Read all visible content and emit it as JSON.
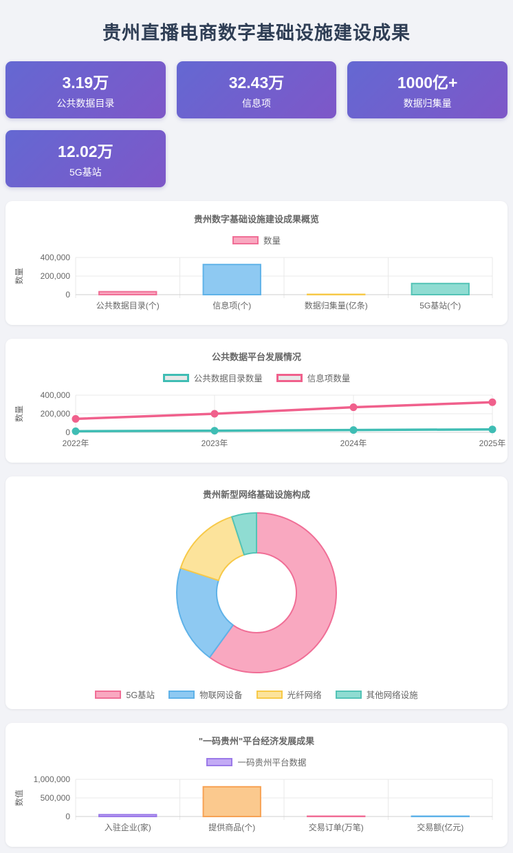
{
  "page": {
    "title": "贵州直播电商数字基础设施建设成果"
  },
  "theme": {
    "page_bg": "#f2f3f7",
    "card_bg": "#ffffff",
    "title_color": "#2f3e55",
    "chart_text": "#666666",
    "stat_gradient_start": "#6468d2",
    "stat_gradient_end": "#7e57c8"
  },
  "stat_cards": [
    {
      "value": "3.19万",
      "label": "公共数据目录"
    },
    {
      "value": "32.43万",
      "label": "信息项"
    },
    {
      "value": "1000亿+",
      "label": "数据归集量"
    },
    {
      "value": "12.02万",
      "label": "5G基站"
    }
  ],
  "chart_data": [
    {
      "type": "bar",
      "title": "贵州数字基础设施建设成果概览",
      "legend": [
        "数量"
      ],
      "legend_swatch": {
        "fill": "#f9a8c0",
        "border": "#f06e96"
      },
      "categories": [
        "公共数据目录(个)",
        "信息项(个)",
        "数据归集量(亿条)",
        "5G基站(个)"
      ],
      "values": [
        31900,
        324300,
        1000,
        120200
      ],
      "bar_colors": [
        {
          "fill": "#f9a8c0",
          "border": "#f06e96"
        },
        {
          "fill": "#8ec9f2",
          "border": "#5fb2e8"
        },
        {
          "fill": "#fce39b",
          "border": "#f7c948"
        },
        {
          "fill": "#8fdcd2",
          "border": "#53c3b6"
        }
      ],
      "xlabel": "",
      "ylabel": "数量",
      "yticks": [
        0,
        200000,
        400000
      ],
      "ylim": [
        0,
        400000
      ],
      "grid": true,
      "legend_position": "top"
    },
    {
      "type": "line",
      "title": "公共数据平台发展情况",
      "x": [
        "2022年",
        "2023年",
        "2024年",
        "2025年"
      ],
      "series": [
        {
          "name": "公共数据目录数量",
          "values": [
            12000,
            18000,
            25000,
            31900
          ],
          "color": "#3fbdb4"
        },
        {
          "name": "信息项数量",
          "values": [
            145000,
            200000,
            270000,
            324300
          ],
          "color": "#f0608c"
        }
      ],
      "legend_fill": "#e8e8e8",
      "xlabel": "",
      "ylabel": "数量",
      "yticks": [
        0,
        200000,
        400000
      ],
      "ylim": [
        0,
        400000
      ],
      "grid": true,
      "legend_position": "top"
    },
    {
      "type": "pie",
      "subtype": "doughnut",
      "title": "贵州新型网络基础设施构成",
      "labels": [
        "5G基站",
        "物联网设备",
        "光纤网络",
        "其他网络设施"
      ],
      "values": [
        60,
        20,
        15,
        5
      ],
      "unit": "percent",
      "cutout_ratio": 0.5,
      "slice_colors": [
        {
          "fill": "#f9a8c0",
          "border": "#f06e96"
        },
        {
          "fill": "#8ec9f2",
          "border": "#5fb2e8"
        },
        {
          "fill": "#fce39b",
          "border": "#f7c948"
        },
        {
          "fill": "#8fdcd2",
          "border": "#53c3b6"
        }
      ],
      "legend_position": "bottom"
    },
    {
      "type": "bar",
      "title": "\"一码贵州\"平台经济发展成果",
      "legend": [
        "一码贵州平台数据"
      ],
      "legend_swatch": {
        "fill": "#c3aaf5",
        "border": "#9b7ae8"
      },
      "categories": [
        "入驻企业(家)",
        "提供商品(个)",
        "交易订单(万笔)",
        "交易额(亿元)"
      ],
      "values": [
        50000,
        800000,
        8000,
        5000
      ],
      "bar_colors": [
        {
          "fill": "#c3aaf5",
          "border": "#9b7ae8"
        },
        {
          "fill": "#fbc98e",
          "border": "#f7a254"
        },
        {
          "fill": "#f9a8c0",
          "border": "#f06e96"
        },
        {
          "fill": "#8ec9f2",
          "border": "#5fb2e8"
        }
      ],
      "xlabel": "",
      "ylabel": "数值",
      "yticks": [
        0,
        500000,
        1000000
      ],
      "ylim": [
        0,
        1000000
      ],
      "grid": true,
      "legend_position": "top"
    }
  ]
}
